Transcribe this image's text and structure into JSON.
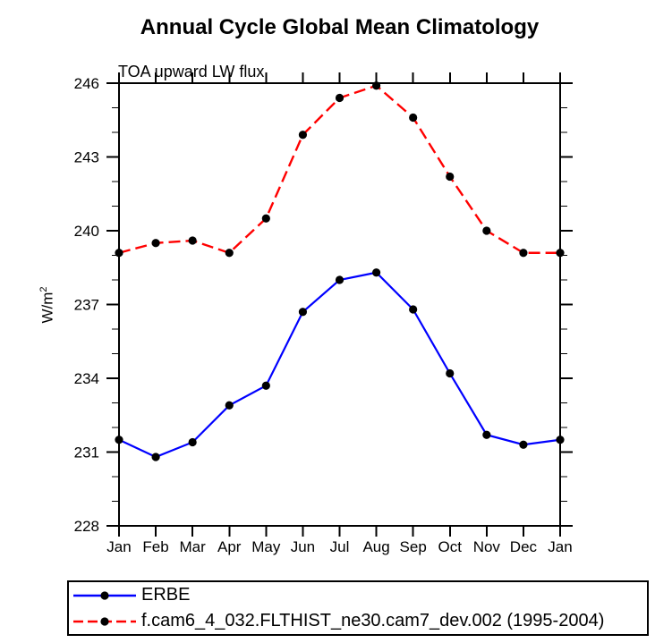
{
  "chart_data": {
    "type": "line",
    "title": "Annual Cycle Global Mean Climatology",
    "subtitle": "TOA upward LW flux",
    "ylabel": "W/m²",
    "ylabel_base": "W/m",
    "ylabel_exp": "2",
    "categories": [
      "Jan",
      "Feb",
      "Mar",
      "Apr",
      "May",
      "Jun",
      "Jul",
      "Aug",
      "Sep",
      "Oct",
      "Nov",
      "Dec",
      "Jan"
    ],
    "ylim": [
      228,
      246
    ],
    "ytick_major_step": 3,
    "ytick_minor_step": 1,
    "ytick_labels": [
      "228",
      "231",
      "234",
      "237",
      "240",
      "243",
      "246"
    ],
    "grid": false,
    "legend_position": "bottom",
    "axis_color": "#000000",
    "marker_color": "#000000",
    "series": [
      {
        "id": "erbe",
        "name": "ERBE",
        "color": "#0000ff",
        "style": "solid",
        "marker": "circle",
        "values": [
          231.5,
          230.8,
          231.4,
          232.9,
          233.7,
          236.7,
          238.0,
          238.3,
          236.8,
          234.2,
          231.7,
          231.3,
          231.5
        ]
      },
      {
        "id": "cam7-model",
        "name": "f.cam6_4_032.FLTHIST_ne30.cam7_dev.002 (1995-2004)",
        "color": "#ff0000",
        "style": "dashed",
        "marker": "circle",
        "values": [
          239.1,
          239.5,
          239.6,
          239.1,
          240.5,
          243.9,
          245.4,
          245.9,
          244.6,
          242.2,
          240.0,
          239.1,
          239.1
        ]
      }
    ]
  }
}
